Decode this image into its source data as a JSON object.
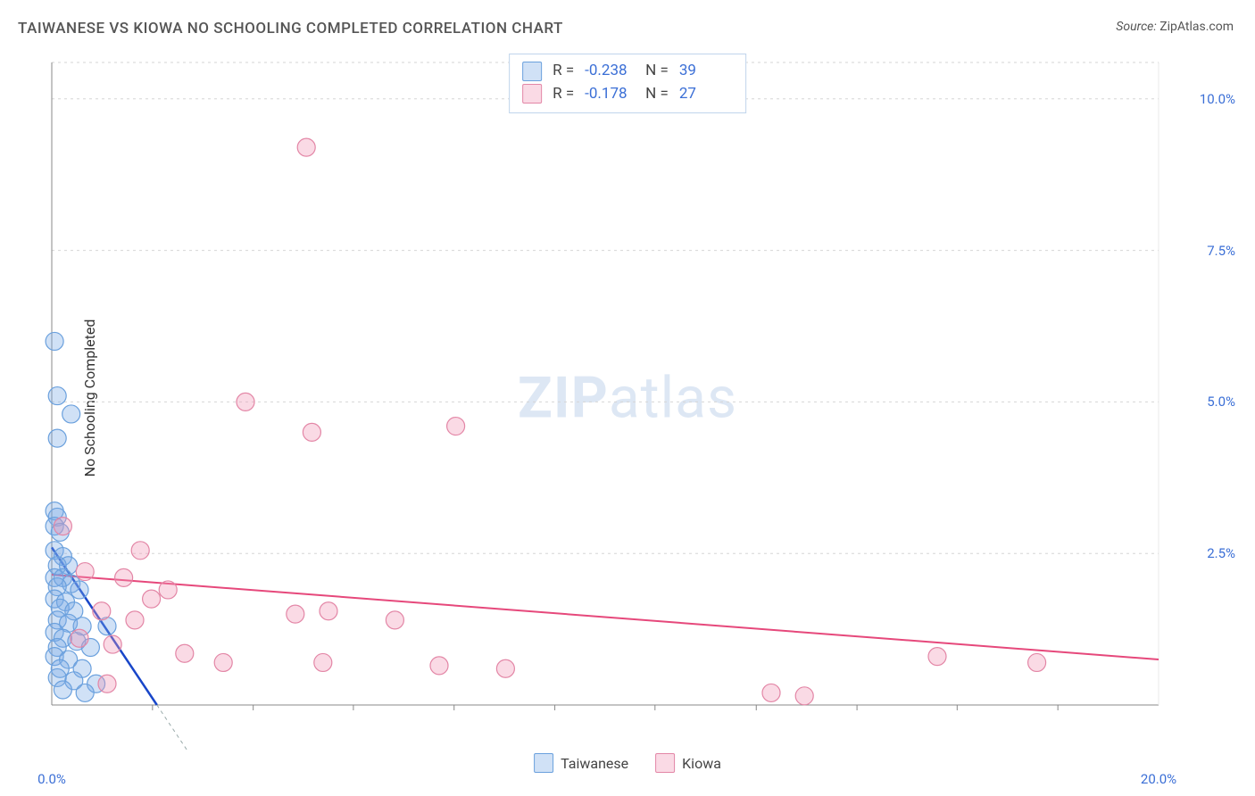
{
  "title": "TAIWANESE VS KIOWA NO SCHOOLING COMPLETED CORRELATION CHART",
  "source_label": "Source:",
  "source_name": "ZipAtlas.com",
  "ylabel": "No Schooling Completed",
  "watermark": {
    "bold": "ZIP",
    "light": "atlas"
  },
  "chart": {
    "type": "scatter",
    "xlim": [
      0,
      20
    ],
    "ylim": [
      0,
      10.6
    ],
    "yticks": [
      2.5,
      5.0,
      7.5,
      10.0
    ],
    "ytick_labels": [
      "2.5%",
      "5.0%",
      "7.5%",
      "10.0%"
    ],
    "xticks": [
      0,
      20
    ],
    "xtick_labels": [
      "0.0%",
      "20.0%"
    ],
    "xtick_minor": [
      1.82,
      3.64,
      5.45,
      7.27,
      9.09,
      10.9,
      12.73,
      14.55,
      16.36,
      18.18
    ],
    "background_color": "#ffffff",
    "grid_color": "#d6d6d6",
    "axis_color": "#888888",
    "marker_radius": 10,
    "series": [
      {
        "name": "Taiwanese",
        "fill": "rgba(120,170,230,0.35)",
        "stroke": "#6aa0dd",
        "R": "-0.238",
        "N": "39",
        "trend": {
          "x1": 0,
          "y1": 2.6,
          "x2": 1.9,
          "y2": 0,
          "color": "#1846c9",
          "width": 2.5,
          "dash_ext_x": 2.6
        },
        "points": [
          [
            0.05,
            6.0
          ],
          [
            0.1,
            5.1
          ],
          [
            0.35,
            4.8
          ],
          [
            0.1,
            4.4
          ],
          [
            0.05,
            3.2
          ],
          [
            0.1,
            3.1
          ],
          [
            0.05,
            2.95
          ],
          [
            0.15,
            2.85
          ],
          [
            0.05,
            2.55
          ],
          [
            0.2,
            2.45
          ],
          [
            0.1,
            2.3
          ],
          [
            0.3,
            2.3
          ],
          [
            0.05,
            2.1
          ],
          [
            0.2,
            2.1
          ],
          [
            0.35,
            2.0
          ],
          [
            0.1,
            1.95
          ],
          [
            0.5,
            1.9
          ],
          [
            0.05,
            1.75
          ],
          [
            0.25,
            1.7
          ],
          [
            0.15,
            1.6
          ],
          [
            0.4,
            1.55
          ],
          [
            0.1,
            1.4
          ],
          [
            0.3,
            1.35
          ],
          [
            0.55,
            1.3
          ],
          [
            0.05,
            1.2
          ],
          [
            1.0,
            1.3
          ],
          [
            0.2,
            1.1
          ],
          [
            0.45,
            1.05
          ],
          [
            0.1,
            0.95
          ],
          [
            0.7,
            0.95
          ],
          [
            0.05,
            0.8
          ],
          [
            0.3,
            0.75
          ],
          [
            0.15,
            0.6
          ],
          [
            0.55,
            0.6
          ],
          [
            0.1,
            0.45
          ],
          [
            0.4,
            0.4
          ],
          [
            0.8,
            0.35
          ],
          [
            0.2,
            0.25
          ],
          [
            0.6,
            0.2
          ]
        ]
      },
      {
        "name": "Kiowa",
        "fill": "rgba(240,150,180,0.35)",
        "stroke": "#e386a6",
        "R": "-0.178",
        "N": "27",
        "trend": {
          "x1": 0,
          "y1": 2.15,
          "x2": 20,
          "y2": 0.75,
          "color": "#e6487b",
          "width": 2,
          "dash_ext_x": null
        },
        "points": [
          [
            4.6,
            9.2
          ],
          [
            3.5,
            5.0
          ],
          [
            4.7,
            4.5
          ],
          [
            7.3,
            4.6
          ],
          [
            1.6,
            2.55
          ],
          [
            0.2,
            2.95
          ],
          [
            0.6,
            2.2
          ],
          [
            1.3,
            2.1
          ],
          [
            2.1,
            1.9
          ],
          [
            1.8,
            1.75
          ],
          [
            0.9,
            1.55
          ],
          [
            1.5,
            1.4
          ],
          [
            4.4,
            1.5
          ],
          [
            5.0,
            1.55
          ],
          [
            6.2,
            1.4
          ],
          [
            0.5,
            1.1
          ],
          [
            1.1,
            1.0
          ],
          [
            2.4,
            0.85
          ],
          [
            3.1,
            0.7
          ],
          [
            4.9,
            0.7
          ],
          [
            7.0,
            0.65
          ],
          [
            8.2,
            0.6
          ],
          [
            13.0,
            0.2
          ],
          [
            13.6,
            0.15
          ],
          [
            16.0,
            0.8
          ],
          [
            17.8,
            0.7
          ],
          [
            1.0,
            0.35
          ]
        ]
      }
    ],
    "stats_box": {
      "rows": [
        {
          "swatch_fill": "rgba(120,170,230,0.35)",
          "swatch_stroke": "#6aa0dd",
          "R": "-0.238",
          "N": "39"
        },
        {
          "swatch_fill": "rgba(240,150,180,0.35)",
          "swatch_stroke": "#e386a6",
          "R": "-0.178",
          "N": "27"
        }
      ]
    },
    "legend": [
      {
        "swatch_fill": "rgba(120,170,230,0.35)",
        "swatch_stroke": "#6aa0dd",
        "label": "Taiwanese"
      },
      {
        "swatch_fill": "rgba(240,150,180,0.35)",
        "swatch_stroke": "#e386a6",
        "label": "Kiowa"
      }
    ]
  }
}
